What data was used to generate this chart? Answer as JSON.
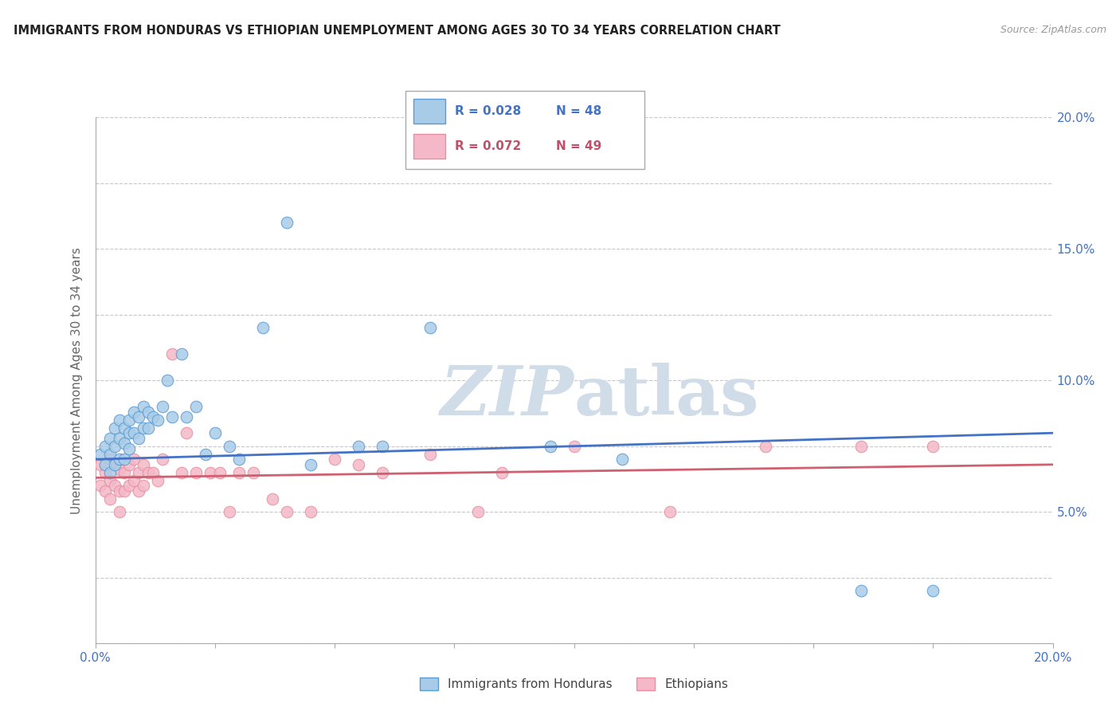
{
  "title": "IMMIGRANTS FROM HONDURAS VS ETHIOPIAN UNEMPLOYMENT AMONG AGES 30 TO 34 YEARS CORRELATION CHART",
  "source": "Source: ZipAtlas.com",
  "ylabel": "Unemployment Among Ages 30 to 34 years",
  "xlim": [
    0.0,
    0.2
  ],
  "ylim": [
    0.0,
    0.2
  ],
  "xticks": [
    0.0,
    0.025,
    0.05,
    0.075,
    0.1,
    0.125,
    0.15,
    0.175,
    0.2
  ],
  "yticks": [
    0.0,
    0.025,
    0.05,
    0.075,
    0.1,
    0.125,
    0.15,
    0.175,
    0.2
  ],
  "blue_series_label": "Immigrants from Honduras",
  "pink_series_label": "Ethiopians",
  "blue_R": "0.028",
  "blue_N": "48",
  "pink_R": "0.072",
  "pink_N": "49",
  "blue_fill": "#a8cce8",
  "pink_fill": "#f4b8c8",
  "blue_edge": "#5b9bd5",
  "pink_edge": "#e88fa0",
  "blue_line": "#4472c4",
  "pink_line": "#d06070",
  "text_blue": "#4472c4",
  "text_pink": "#c0506a",
  "axis_blue": "#4472c4",
  "watermark_color": "#d0dce8",
  "background_color": "#ffffff",
  "blue_x": [
    0.001,
    0.002,
    0.002,
    0.003,
    0.003,
    0.003,
    0.004,
    0.004,
    0.004,
    0.005,
    0.005,
    0.005,
    0.006,
    0.006,
    0.006,
    0.007,
    0.007,
    0.007,
    0.008,
    0.008,
    0.009,
    0.009,
    0.01,
    0.01,
    0.011,
    0.011,
    0.012,
    0.013,
    0.014,
    0.015,
    0.016,
    0.018,
    0.019,
    0.021,
    0.023,
    0.025,
    0.028,
    0.03,
    0.035,
    0.04,
    0.045,
    0.055,
    0.06,
    0.07,
    0.095,
    0.11,
    0.16,
    0.175
  ],
  "blue_y": [
    0.072,
    0.075,
    0.068,
    0.078,
    0.072,
    0.065,
    0.082,
    0.075,
    0.068,
    0.085,
    0.078,
    0.07,
    0.082,
    0.076,
    0.07,
    0.085,
    0.08,
    0.074,
    0.088,
    0.08,
    0.086,
    0.078,
    0.09,
    0.082,
    0.088,
    0.082,
    0.086,
    0.085,
    0.09,
    0.1,
    0.086,
    0.11,
    0.086,
    0.09,
    0.072,
    0.08,
    0.075,
    0.07,
    0.12,
    0.16,
    0.068,
    0.075,
    0.075,
    0.12,
    0.075,
    0.07,
    0.02,
    0.02
  ],
  "pink_x": [
    0.001,
    0.001,
    0.002,
    0.002,
    0.003,
    0.003,
    0.003,
    0.004,
    0.004,
    0.005,
    0.005,
    0.005,
    0.006,
    0.006,
    0.007,
    0.007,
    0.008,
    0.008,
    0.009,
    0.009,
    0.01,
    0.01,
    0.011,
    0.012,
    0.013,
    0.014,
    0.016,
    0.018,
    0.019,
    0.021,
    0.024,
    0.026,
    0.028,
    0.03,
    0.033,
    0.037,
    0.04,
    0.045,
    0.05,
    0.055,
    0.06,
    0.07,
    0.08,
    0.085,
    0.1,
    0.12,
    0.14,
    0.16,
    0.175
  ],
  "pink_y": [
    0.068,
    0.06,
    0.065,
    0.058,
    0.07,
    0.062,
    0.055,
    0.068,
    0.06,
    0.066,
    0.058,
    0.05,
    0.065,
    0.058,
    0.068,
    0.06,
    0.07,
    0.062,
    0.065,
    0.058,
    0.068,
    0.06,
    0.065,
    0.065,
    0.062,
    0.07,
    0.11,
    0.065,
    0.08,
    0.065,
    0.065,
    0.065,
    0.05,
    0.065,
    0.065,
    0.055,
    0.05,
    0.05,
    0.07,
    0.068,
    0.065,
    0.072,
    0.05,
    0.065,
    0.075,
    0.05,
    0.075,
    0.075,
    0.075
  ]
}
